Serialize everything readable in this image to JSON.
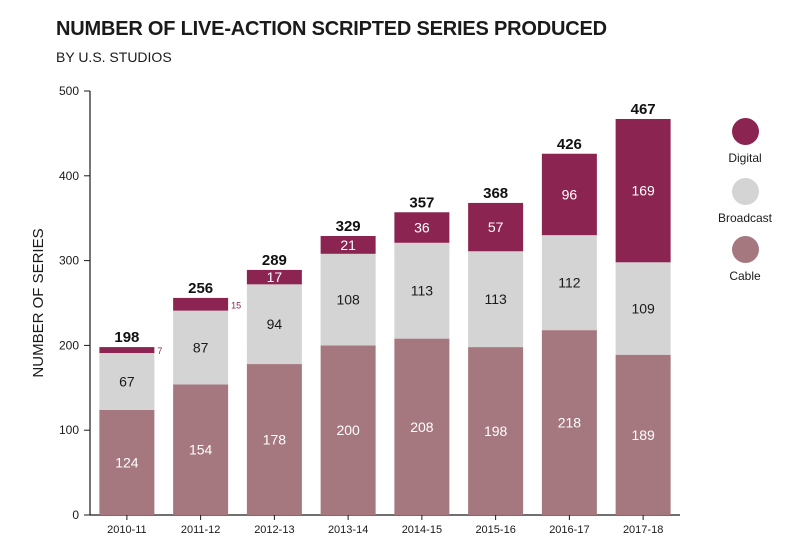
{
  "title": "NUMBER OF LIVE-ACTION SCRIPTED SERIES PRODUCED",
  "subtitle": "BY U.S. STUDIOS",
  "colors": {
    "digital": "#8c2451",
    "broadcast": "#d4d4d4",
    "cable": "#a5777f",
    "axis": "#1a1a1a"
  },
  "legend": [
    {
      "key": "digital",
      "label": "Digital"
    },
    {
      "key": "broadcast",
      "label": "Broadcast"
    },
    {
      "key": "cable",
      "label": "Cable"
    }
  ],
  "chart_data": {
    "type": "bar",
    "stacked": true,
    "title": "NUMBER OF LIVE-ACTION SCRIPTED SERIES PRODUCED",
    "subtitle": "BY U.S. STUDIOS",
    "xlabel": "",
    "ylabel": "NUMBER OF SERIES",
    "ylim": [
      0,
      500
    ],
    "yticks": [
      0,
      100,
      200,
      300,
      400,
      500
    ],
    "grid": false,
    "legend_position": "right",
    "categories": [
      "2010-11",
      "2011-12",
      "2012-13",
      "2013-14",
      "2014-15",
      "2015-16",
      "2016-17",
      "2017-18"
    ],
    "series": [
      {
        "name": "Cable",
        "values": [
          124,
          154,
          178,
          200,
          208,
          198,
          218,
          189
        ]
      },
      {
        "name": "Broadcast",
        "values": [
          67,
          87,
          94,
          108,
          113,
          113,
          112,
          109
        ]
      },
      {
        "name": "Digital",
        "values": [
          7,
          15,
          17,
          21,
          36,
          57,
          96,
          169
        ]
      }
    ],
    "totals": [
      198,
      256,
      289,
      329,
      357,
      368,
      426,
      467
    ]
  }
}
